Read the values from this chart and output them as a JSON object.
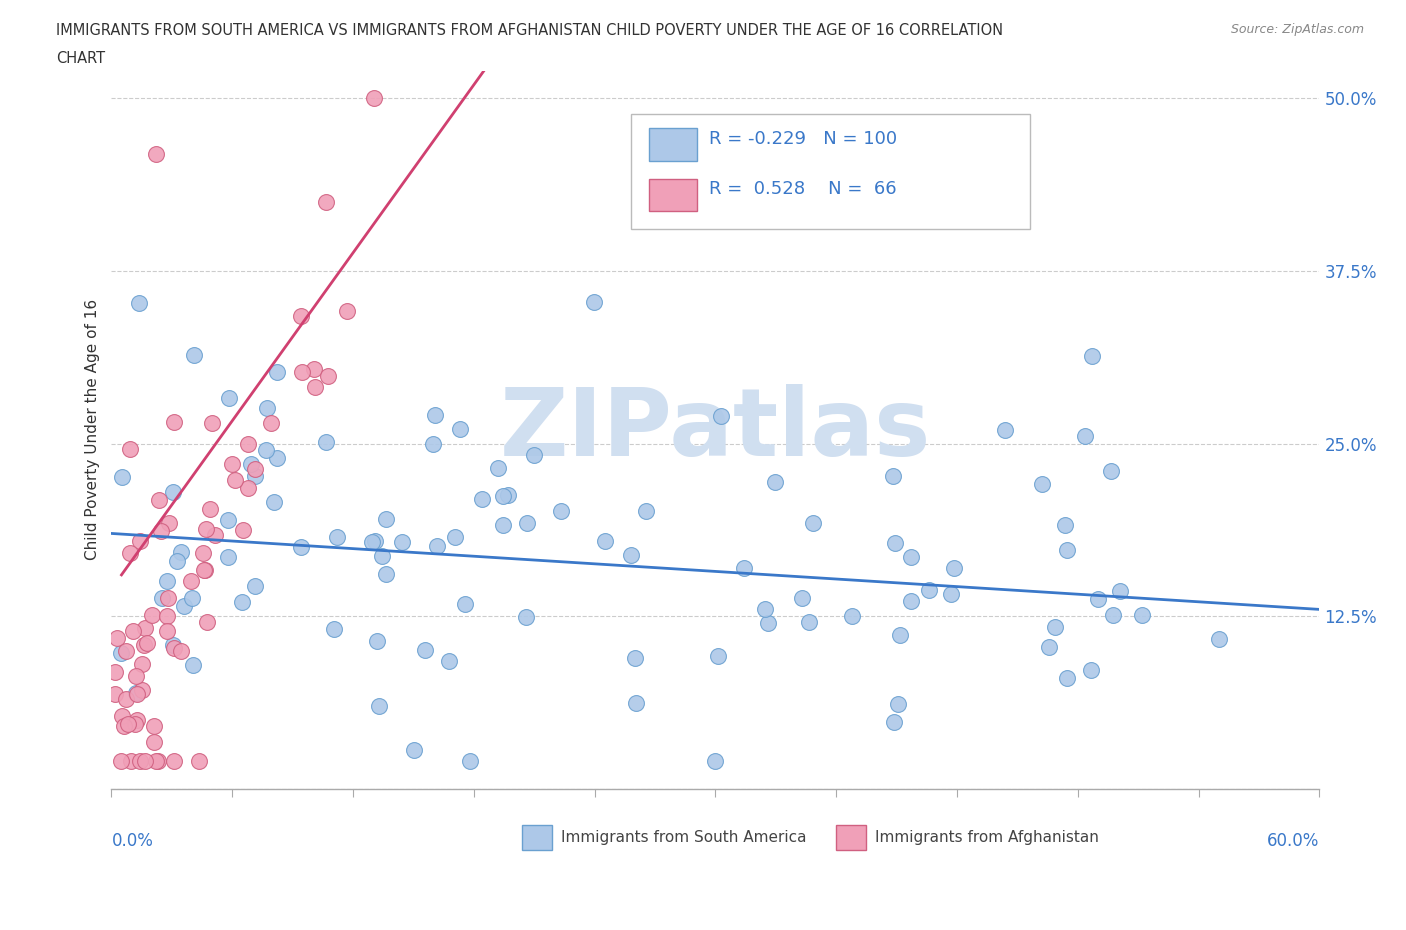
{
  "title_line1": "IMMIGRANTS FROM SOUTH AMERICA VS IMMIGRANTS FROM AFGHANISTAN CHILD POVERTY UNDER THE AGE OF 16 CORRELATION",
  "title_line2": "CHART",
  "source": "Source: ZipAtlas.com",
  "ylabel": "Child Poverty Under the Age of 16",
  "xlim": [
    0.0,
    0.6
  ],
  "ylim": [
    0.0,
    0.52
  ],
  "ytick_vals": [
    0.0,
    0.125,
    0.25,
    0.375,
    0.5
  ],
  "ytick_labels": [
    "",
    "12.5%",
    "25.0%",
    "37.5%",
    "50.0%"
  ],
  "color_blue": "#adc8e8",
  "color_pink": "#f0a0b8",
  "color_blue_edge": "#6aa0d0",
  "color_pink_edge": "#d06080",
  "color_blue_line": "#3a78c9",
  "color_pink_line": "#d04070",
  "watermark": "ZIPatlas",
  "watermark_color": "#d0dff0",
  "legend_R1": "-0.229",
  "legend_N1": "100",
  "legend_R2": "0.528",
  "legend_N2": "66",
  "blue_trend_x0": 0.0,
  "blue_trend_x1": 0.6,
  "blue_trend_y0": 0.185,
  "blue_trend_y1": 0.13,
  "pink_trend_x0": 0.005,
  "pink_trend_x1": 0.185,
  "pink_trend_y0": 0.155,
  "pink_trend_y1": 0.52
}
